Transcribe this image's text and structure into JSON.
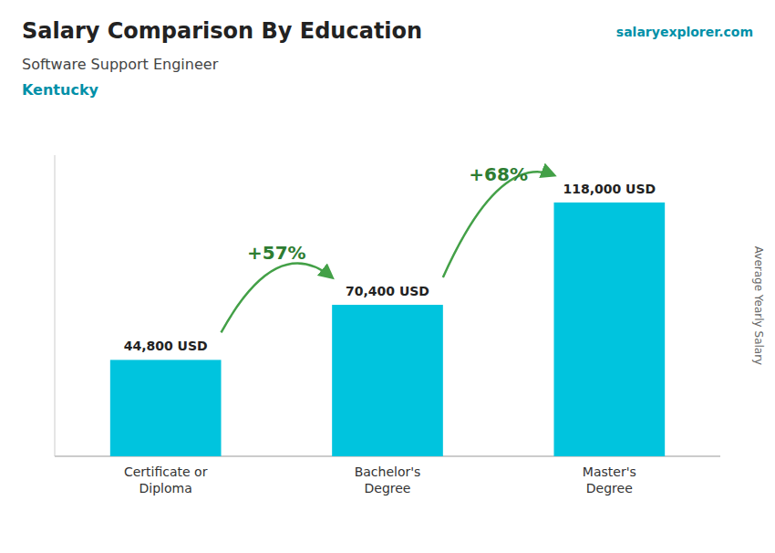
{
  "chart_data": {
    "type": "bar",
    "title": "Salary Comparison By Education",
    "subtitle": "Software Support Engineer",
    "location": "Kentucky",
    "source": "salaryexplorer.com",
    "ylabel": "Average Yearly Salary",
    "categories": [
      "Certificate or\nDiploma",
      "Bachelor's\nDegree",
      "Master's\nDegree"
    ],
    "values": [
      44800,
      70400,
      118000
    ],
    "value_labels": [
      "44,800 USD",
      "70,400 USD",
      "118,000 USD"
    ],
    "data_labels": true,
    "annotations": [
      "+57%",
      "+68%"
    ],
    "color": "#00c4de",
    "ylim": [
      0,
      140000
    ],
    "tick_labels": "x",
    "grid": false
  }
}
